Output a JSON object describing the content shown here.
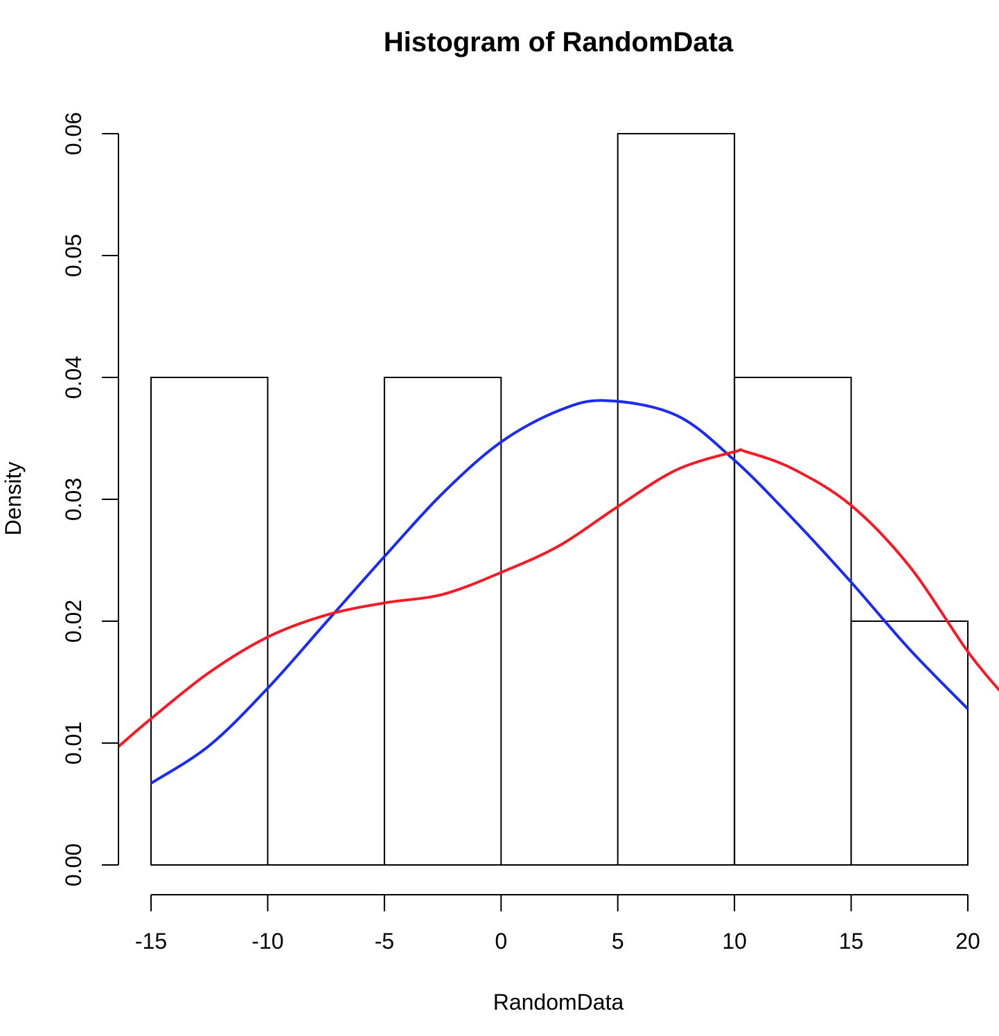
{
  "chart_data": {
    "type": "bar",
    "title": "Histogram of RandomData",
    "xlabel": "RandomData",
    "ylabel": "Density",
    "xlim": [
      -16.4,
      21.5
    ],
    "ylim": [
      0,
      0.06
    ],
    "grid": false,
    "bins": [
      {
        "x0": -15,
        "x1": -10,
        "density": 0.04
      },
      {
        "x0": -10,
        "x1": -5,
        "density": 0.0
      },
      {
        "x0": -5,
        "x1": 0,
        "density": 0.04
      },
      {
        "x0": 0,
        "x1": 5,
        "density": 0.0
      },
      {
        "x0": 5,
        "x1": 10,
        "density": 0.06
      },
      {
        "x0": 10,
        "x1": 15,
        "density": 0.04
      },
      {
        "x0": 15,
        "x1": 20,
        "density": 0.02
      }
    ],
    "x_ticks": [
      -15,
      -10,
      -5,
      0,
      5,
      10,
      15,
      20
    ],
    "x_tick_labels": [
      "-15",
      "-10",
      "-5",
      "0",
      "5",
      "10",
      "15",
      "20"
    ],
    "y_ticks": [
      0,
      0.01,
      0.02,
      0.03,
      0.04,
      0.05,
      0.06
    ],
    "y_tick_labels": [
      "0.00",
      "0.01",
      "0.02",
      "0.03",
      "0.04",
      "0.05",
      "0.06"
    ],
    "series": [
      {
        "color": "#1a2bf5",
        "x": [
          -15,
          -12.5,
          -10,
          -7.5,
          -5,
          -2.5,
          0,
          2.5,
          4.5,
          7.5,
          10,
          12.5,
          15,
          17.5,
          20
        ],
        "y": [
          0.0067,
          0.0098,
          0.0145,
          0.0199,
          0.0253,
          0.0305,
          0.0347,
          0.0373,
          0.0381,
          0.0369,
          0.0332,
          0.0284,
          0.0232,
          0.0177,
          0.0128
        ]
      },
      {
        "color": "#f51a24",
        "x": [
          -16.4,
          -15,
          -12.5,
          -10,
          -7.5,
          -5,
          -2.5,
          0,
          2.5,
          5,
          7.5,
          10,
          10.5,
          12.5,
          15,
          17.5,
          20,
          21.5
        ],
        "y": [
          0.0097,
          0.012,
          0.0158,
          0.0187,
          0.0205,
          0.0215,
          0.0222,
          0.024,
          0.0262,
          0.0294,
          0.0324,
          0.0339,
          0.0339,
          0.0325,
          0.0295,
          0.0245,
          0.0175,
          0.014
        ]
      }
    ]
  }
}
